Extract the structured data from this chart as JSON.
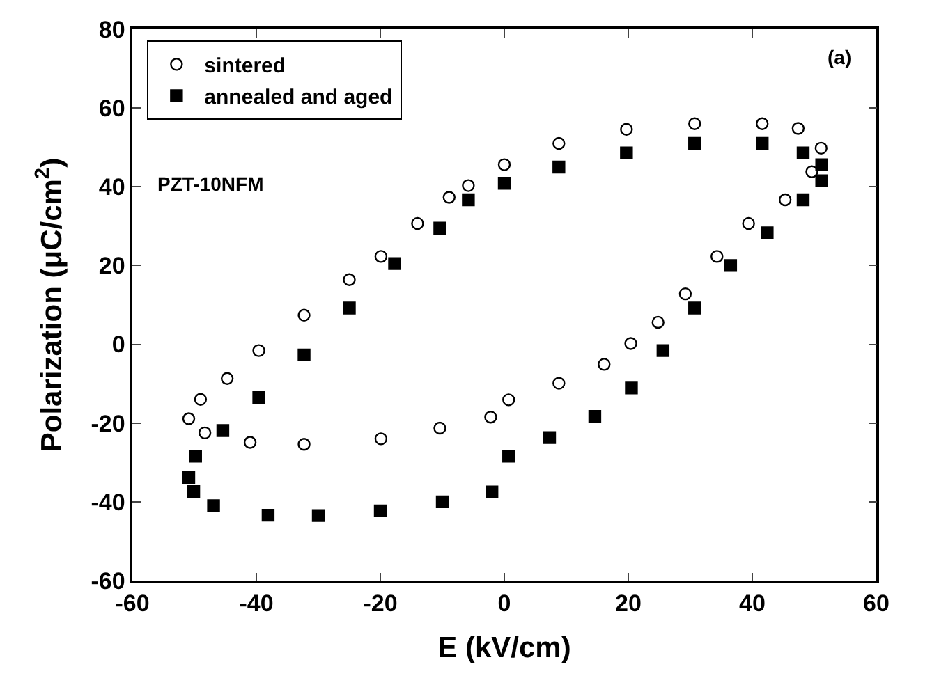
{
  "chart_data": {
    "type": "scatter",
    "xlabel": "E (kV/cm)",
    "ylabel": "Polarization (μC/cm$^{2}$)",
    "xlim": [
      -60,
      60
    ],
    "xticks": [
      -60,
      -40,
      -20,
      0,
      20,
      40,
      60
    ],
    "ylim": [
      -60,
      80
    ],
    "yticks": [
      -60,
      -40,
      -20,
      0,
      20,
      40,
      60,
      80
    ],
    "legend": "top left",
    "annotations": [
      "PZT-10NFM",
      "(a)"
    ],
    "series": [
      {
        "name": "sintered",
        "color": "#000000",
        "marker": "circle",
        "x": [
          -2.2,
          -10.4,
          -19.9,
          -32.3,
          -41,
          -48.3,
          -50.9,
          -49,
          -44.7,
          -39.6,
          -32.3,
          -25,
          -19.9,
          -14,
          -8.9,
          -5.8,
          0,
          8.8,
          19.7,
          30.7,
          41.6,
          47.4,
          51.1,
          49.6,
          45.3,
          39.4,
          34.3,
          29.2,
          24.8,
          20.4,
          16.1,
          8.8,
          0.7
        ],
        "values": [
          -18.5,
          -21.3,
          -24,
          -25.4,
          -24.9,
          -22.5,
          -18.9,
          -14,
          -8.7,
          -1.6,
          7.4,
          16.4,
          22.3,
          30.7,
          37.3,
          40.3,
          45.6,
          51,
          54.6,
          56,
          56,
          54.8,
          49.8,
          43.8,
          36.7,
          30.7,
          22.3,
          12.8,
          5.6,
          0.2,
          -5.1,
          -9.9,
          -14.1
        ]
      },
      {
        "name": "annealed and aged",
        "color": "#000000",
        "marker": "square",
        "x": [
          -2,
          -10,
          -20,
          -30,
          -38.1,
          -46.9,
          -50.1,
          -50.9,
          -49.8,
          -45.4,
          -39.6,
          -32.3,
          -25,
          -17.7,
          -10.4,
          -5.8,
          0,
          8.8,
          19.7,
          30.7,
          41.6,
          48.2,
          51.2,
          51.2,
          48.2,
          42.4,
          36.5,
          30.7,
          25.6,
          20.5,
          14.6,
          7.3,
          0.7
        ],
        "values": [
          -37.5,
          -40,
          -42.3,
          -43.5,
          -43.4,
          -41,
          -37.4,
          -33.8,
          -28.4,
          -21.9,
          -13.5,
          -2.7,
          9.2,
          20.5,
          29.5,
          36.7,
          40.9,
          45,
          48.6,
          51,
          51,
          48.6,
          45.6,
          41.5,
          36.7,
          28.3,
          20,
          9.2,
          -1.6,
          -11.1,
          -18.3,
          -23.7,
          -28.4
        ]
      }
    ]
  }
}
